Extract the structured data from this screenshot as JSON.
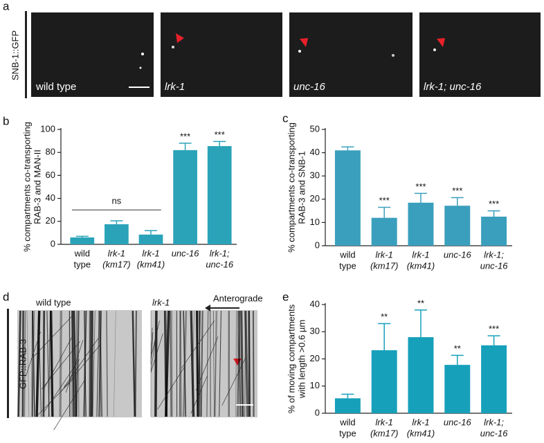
{
  "panels": {
    "a": {
      "label": "a",
      "stain": "SNB-1::GFP",
      "images": [
        "wild type",
        "lrk-1",
        "unc-16",
        "lrk-1; unc-16"
      ]
    },
    "d": {
      "label": "d",
      "stain": "GFP::RAB-3",
      "images": [
        "wild type",
        "lrk-1"
      ],
      "direction": "Anterograde"
    }
  },
  "chart_data": [
    {
      "type": "bar",
      "label": "b",
      "ylabel": [
        "% compartments co-transporting",
        "RAB-3 and MAN-II"
      ],
      "categories": [
        [
          "wild",
          "type"
        ],
        [
          "lrk-1",
          "(km17)"
        ],
        [
          "lrk-1",
          "(km41)"
        ],
        [
          "unc-16",
          null
        ],
        [
          "lrk-1;",
          "unc-16"
        ]
      ],
      "values": [
        6,
        17.5,
        8.5,
        82,
        85.5
      ],
      "errors": [
        1,
        3,
        3.5,
        6,
        4
      ],
      "significance": [
        null,
        null,
        null,
        "***",
        "***"
      ],
      "annotation": "ns",
      "color": "#2aa3b9",
      "ylim": [
        0,
        100
      ],
      "yticks": [
        0,
        20,
        40,
        60,
        80,
        100
      ]
    },
    {
      "type": "bar",
      "label": "c",
      "ylabel": [
        "% compartments co-transporting",
        "RAB-3 and SNB-1"
      ],
      "categories": [
        [
          "wild",
          "type"
        ],
        [
          "lrk-1",
          "(km17)"
        ],
        [
          "lrk-1",
          "(km41)"
        ],
        [
          "unc-16",
          null
        ],
        [
          "lrk-1;",
          "unc-16"
        ]
      ],
      "values": [
        41,
        12,
        18.5,
        17.2,
        12.5
      ],
      "errors": [
        1.5,
        4.5,
        4,
        3.5,
        2.5
      ],
      "significance": [
        null,
        "***",
        "***",
        "***",
        "***"
      ],
      "color": "#3a9fbd",
      "ylim": [
        0,
        50
      ],
      "yticks": [
        0,
        10,
        20,
        30,
        40,
        50
      ]
    },
    {
      "type": "bar",
      "label": "e",
      "ylabel": [
        "% of moving compartments",
        "with length >0.6  µm"
      ],
      "categories": [
        [
          "wild",
          "type"
        ],
        [
          "lrk-1",
          "(km17)"
        ],
        [
          "lrk-1",
          "(km41)"
        ],
        [
          "unc-16",
          null
        ],
        [
          "lrk-1;",
          "unc-16"
        ]
      ],
      "values": [
        5.5,
        23.2,
        28,
        17.8,
        25
      ],
      "errors": [
        1.5,
        9.8,
        10,
        3.5,
        3.5
      ],
      "significance": [
        null,
        "**",
        "**",
        "**",
        "***"
      ],
      "color": "#16a0ba",
      "ylim": [
        0,
        40
      ],
      "yticks": [
        0,
        10,
        20,
        30,
        40
      ]
    }
  ]
}
